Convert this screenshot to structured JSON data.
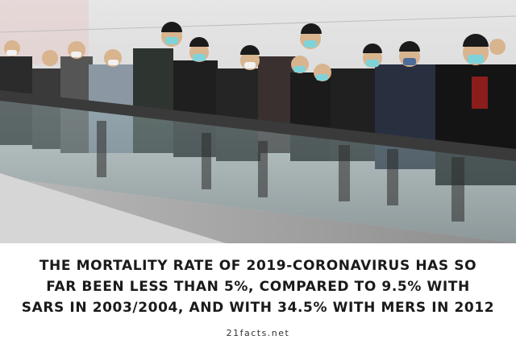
{
  "photo": {
    "description_icon": "crowd-on-walkway-photo"
  },
  "caption": {
    "lines": [
      "THE MORTALITY RATE OF 2019-CORONAVIRUS HAS SO",
      "FAR BEEN LESS THAN 5%, COMPARED TO 9.5% WITH",
      "SARS IN 2003/2004, AND WITH 34.5% WITH MERS IN 2012"
    ],
    "site": "21facts.net"
  },
  "colors": {
    "text": "#1a1a1a",
    "background": "#ffffff",
    "mask": "#7fd3d8",
    "wall": "#dcdcdc"
  }
}
